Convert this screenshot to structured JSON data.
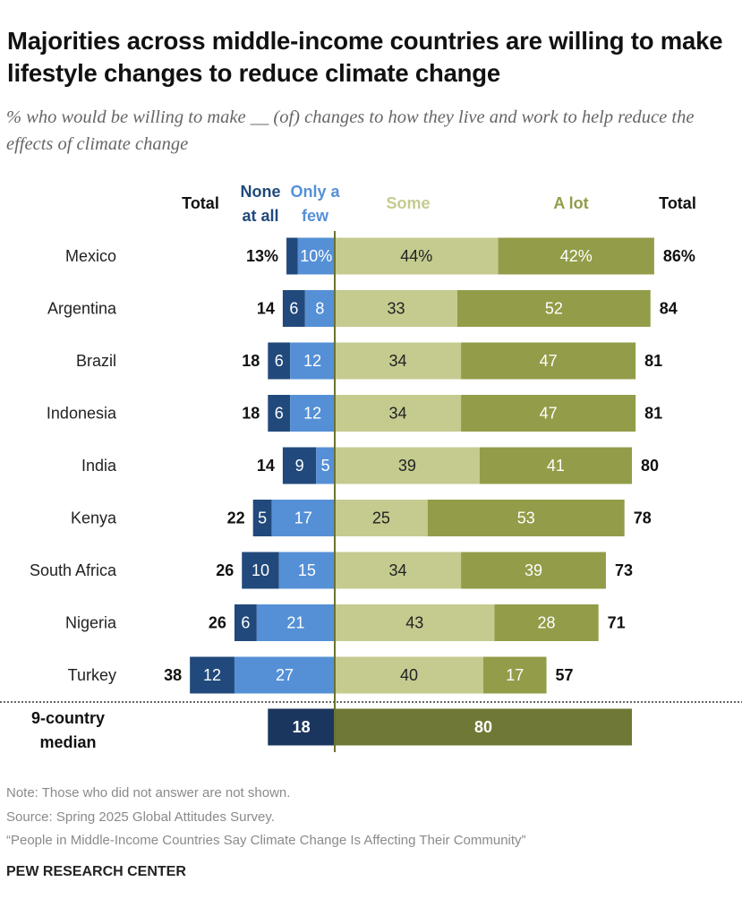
{
  "title": "Majorities across middle-income countries are willing to make lifestyle changes to reduce climate change",
  "subtitle": "% who would be willing to make __ (of) changes to how they live and work to help reduce the effects of climate change",
  "chart_data": {
    "type": "bar",
    "orientation": "horizontal diverging stacked",
    "headers": {
      "left_total": "Total",
      "none": [
        "None",
        "at all"
      ],
      "few": [
        "Only a",
        "few"
      ],
      "some": "Some",
      "alot": "A lot",
      "right_total": "Total"
    },
    "categories": [
      "Mexico",
      "Argentina",
      "Brazil",
      "Indonesia",
      "India",
      "Kenya",
      "South Africa",
      "Nigeria",
      "Turkey"
    ],
    "series": [
      {
        "name": "None at all",
        "side": "left",
        "color": "#21497b",
        "values": [
          3,
          6,
          6,
          6,
          9,
          5,
          10,
          6,
          12
        ]
      },
      {
        "name": "Only a few",
        "side": "left",
        "color": "#5590d6",
        "values": [
          10,
          8,
          12,
          12,
          5,
          17,
          15,
          21,
          27
        ]
      },
      {
        "name": "Some",
        "side": "right",
        "color": "#c5cb8f",
        "values": [
          44,
          33,
          34,
          34,
          39,
          25,
          34,
          43,
          40
        ]
      },
      {
        "name": "A lot",
        "side": "right",
        "color": "#939c48",
        "values": [
          42,
          52,
          47,
          47,
          41,
          53,
          39,
          28,
          17
        ]
      }
    ],
    "left_totals": [
      13,
      14,
      18,
      18,
      14,
      22,
      26,
      26,
      38
    ],
    "right_totals": [
      86,
      84,
      81,
      81,
      80,
      78,
      73,
      71,
      57
    ],
    "first_row_labels_with_percent": true,
    "median": {
      "label": [
        "9-country",
        "median"
      ],
      "left": 18,
      "right": 80,
      "left_color": "#1b365e",
      "right_color": "#707835"
    }
  },
  "notes": [
    "Note: Those who did not answer are not shown.",
    "Source: Spring 2025 Global Attitudes Survey.",
    "“People in Middle-Income Countries Say Climate Change Is Affecting Their Community”"
  ],
  "brand": "PEW RESEARCH CENTER"
}
